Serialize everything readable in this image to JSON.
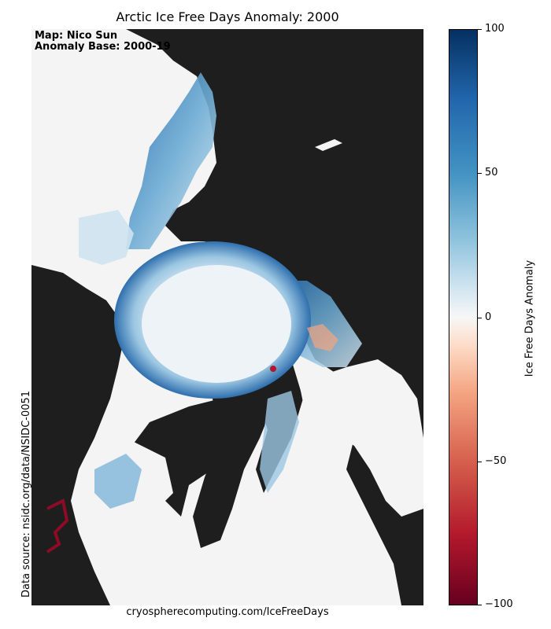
{
  "title": "Arctic Ice Free Days Anomaly: 2000",
  "credit": {
    "line1": "Map: Nico Sun",
    "line2": "Anomaly Base: 2000-19"
  },
  "data_source": "Data source: nsidc.org/data/NSIDC-0051",
  "footer": "cryospherecomputing.com/IceFreeDays",
  "colorbar": {
    "label": "Ice Free Days Anomaly",
    "ticks": [
      "100",
      "50",
      "0",
      "−50",
      "−100"
    ],
    "tick_values": [
      100,
      50,
      0,
      -50,
      -100
    ],
    "colormap": "RdBu"
  },
  "colors": {
    "land": "#1e1e1e",
    "neutral_ocean": "#f4f4f4",
    "positive_anomaly": "#2166ac",
    "negative_anomaly": "#b2182b"
  }
}
